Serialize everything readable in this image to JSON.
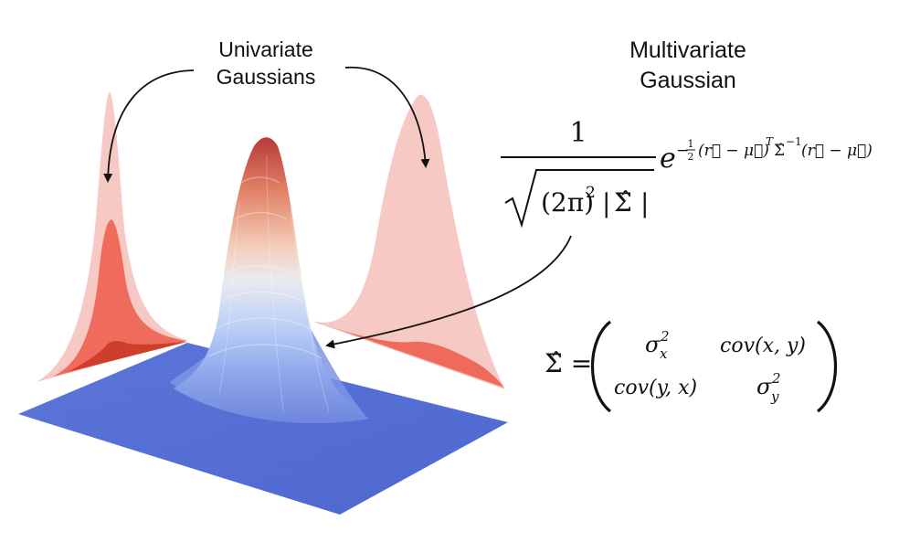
{
  "labels": {
    "univariate_line1": "Univariate",
    "univariate_line2": "Gaussians",
    "multivariate_line1": "Multivariate",
    "multivariate_line2": "Gaussian"
  },
  "formula": {
    "numerator": "1",
    "denominator_paren": "(2π)",
    "denominator_sq": "2",
    "denominator_abs": "|",
    "sigma_hat": "Σ̂",
    "e": "e",
    "exponent_minus": "−",
    "exponent_half_num": "1",
    "exponent_half_den": "2",
    "exponent_body": "(r⃗ − μ⃗)",
    "exponent_T": "T",
    "exponent_sigma": "Σ̂",
    "exponent_inv": "−1",
    "exponent_tail": "(r⃗ − μ⃗)"
  },
  "covariance": {
    "lhs": "Σ̂ =",
    "a11_base": "σ",
    "a11_sub": "x",
    "a11_sup": "2",
    "a12": "cov(x, y)",
    "a21": "cov(y, x)",
    "a22_base": "σ",
    "a22_sub": "y",
    "a22_sup": "2"
  },
  "colors": {
    "plane": "#5570d6",
    "peak_top": "#b73c3c",
    "peak_mid": "#f3d6cb",
    "peak_low": "#97b6f0",
    "projection_light": "#f7c9c5",
    "projection_mid": "#ef6b5c",
    "projection_dark": "#cf3e2c"
  }
}
